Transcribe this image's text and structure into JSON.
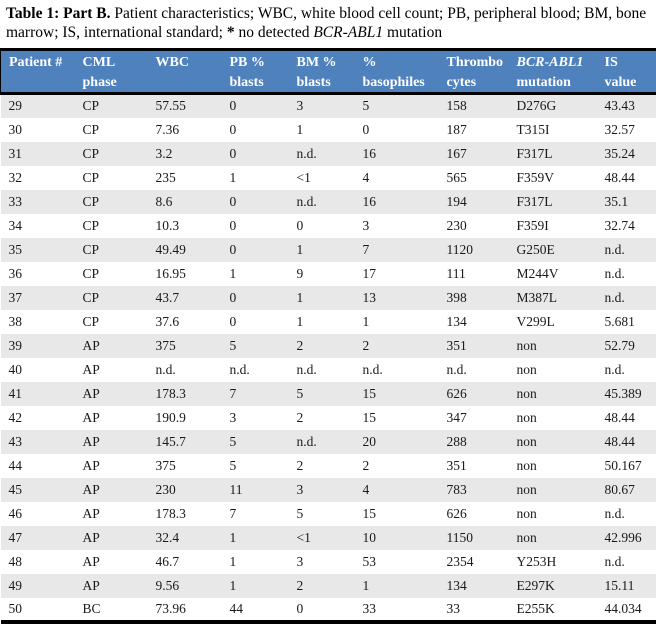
{
  "colors": {
    "header_bg": "#4f81bd",
    "header_text": "#ffffff",
    "band_bg": "#e8e8e8",
    "row_bg": "#ffffff",
    "border_color": "#000000"
  },
  "title": {
    "bold_prefix": "Table 1: Part B.",
    "text_part1": " Patient characteristics; WBC, white blood cell count; PB, peripheral blood; BM, bone marrow; IS, international standard; ",
    "asterisk": "*",
    "text_part2": " no detected ",
    "italic_gene": "BCR-ABL1",
    "text_part3": " mutation"
  },
  "table": {
    "columns": [
      {
        "line1": "Patient #",
        "line2": "",
        "italic_line1": false
      },
      {
        "line1": "CML",
        "line2": "phase",
        "italic_line1": false
      },
      {
        "line1": "WBC",
        "line2": "",
        "italic_line1": false
      },
      {
        "line1": "PB %",
        "line2": "blasts",
        "italic_line1": false
      },
      {
        "line1": "BM %",
        "line2": "blasts",
        "italic_line1": false
      },
      {
        "line1": "%",
        "line2": "basophiles",
        "italic_line1": false
      },
      {
        "line1": "Thrombo",
        "line2": "cytes",
        "italic_line1": false
      },
      {
        "line1": "BCR-ABL1",
        "line2": "mutation",
        "italic_line1": true
      },
      {
        "line1": "IS",
        "line2": "value",
        "italic_line1": false
      }
    ],
    "rows": [
      [
        "29",
        "CP",
        "57.55",
        "0",
        "3",
        "5",
        "158",
        "D276G",
        "43.43"
      ],
      [
        "30",
        "CP",
        "7.36",
        "0",
        "1",
        "0",
        "187",
        "T315I",
        "32.57"
      ],
      [
        "31",
        "CP",
        "3.2",
        "0",
        "n.d.",
        "16",
        "167",
        "F317L",
        "35.24"
      ],
      [
        "32",
        "CP",
        "235",
        "1",
        "<1",
        "4",
        "565",
        "F359V",
        "48.44"
      ],
      [
        "33",
        "CP",
        "8.6",
        "0",
        "n.d.",
        "16",
        "194",
        "F317L",
        "35.1"
      ],
      [
        "34",
        "CP",
        "10.3",
        "0",
        "0",
        "3",
        "230",
        "F359I",
        "32.74"
      ],
      [
        "35",
        "CP",
        "49.49",
        "0",
        "1",
        "7",
        "1120",
        "G250E",
        "n.d."
      ],
      [
        "36",
        "CP",
        "16.95",
        "1",
        "9",
        "17",
        "111",
        "M244V",
        "n.d."
      ],
      [
        "37",
        "CP",
        "43.7",
        "0",
        "1",
        "13",
        "398",
        "M387L",
        "n.d."
      ],
      [
        "38",
        "CP",
        "37.6",
        "0",
        "1",
        "1",
        "134",
        "V299L",
        "5.681"
      ],
      [
        "39",
        "AP",
        "375",
        "5",
        "2",
        "2",
        "351",
        "non",
        "52.79"
      ],
      [
        "40",
        "AP",
        "n.d.",
        "n.d.",
        "n.d.",
        "n.d.",
        "n.d.",
        "non",
        "n.d."
      ],
      [
        "41",
        "AP",
        "178.3",
        "7",
        "5",
        "15",
        "626",
        "non",
        "45.389"
      ],
      [
        "42",
        "AP",
        "190.9",
        "3",
        "2",
        "15",
        "347",
        "non",
        "48.44"
      ],
      [
        "43",
        "AP",
        "145.7",
        "5",
        "n.d.",
        "20",
        "288",
        "non",
        "48.44"
      ],
      [
        "44",
        "AP",
        "375",
        "5",
        "2",
        "2",
        "351",
        "non",
        "50.167"
      ],
      [
        "45",
        "AP",
        "230",
        "11",
        "3",
        "4",
        "783",
        "non",
        "80.67"
      ],
      [
        "46",
        "AP",
        "178.3",
        "7",
        "5",
        "15",
        "626",
        "non",
        "n.d."
      ],
      [
        "47",
        "AP",
        "32.4",
        "1",
        "<1",
        "10",
        "1150",
        "non",
        "42.996"
      ],
      [
        "48",
        "AP",
        "46.7",
        "1",
        "3",
        "53",
        "2354",
        "Y253H",
        "n.d."
      ],
      [
        "49",
        "AP",
        "9.56",
        "1",
        "2",
        "1",
        "134",
        "E297K",
        "15.11"
      ],
      [
        "50",
        "BC",
        "73.96",
        "44",
        "0",
        "33",
        "33",
        "E255K",
        "44.034"
      ]
    ]
  }
}
